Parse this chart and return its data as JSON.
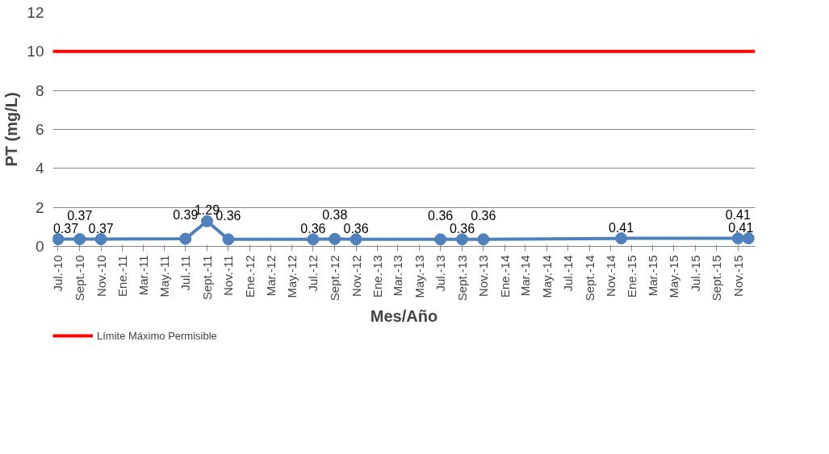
{
  "chart_data": {
    "type": "line",
    "xlabel": "Mes/Año",
    "ylabel": "PT (mg/L)",
    "x": [
      "2010-07",
      "2010-09",
      "2010-11",
      "2011-07",
      "2011-09",
      "2011-11",
      "2012-07",
      "2012-09",
      "2012-11",
      "2013-07",
      "2013-09",
      "2013-11",
      "2014-12",
      "2015-11",
      "2015-12"
    ],
    "series": [
      {
        "color": "#4f81bd",
        "values": [
          0.37,
          0.37,
          0.37,
          0.39,
          1.29,
          0.36,
          0.36,
          0.38,
          0.36,
          0.36,
          0.36,
          0.36,
          0.41,
          0.41,
          0.41
        ]
      }
    ],
    "data_labels": true,
    "marker": "circle",
    "line_style": "solid",
    "ylim": [
      0,
      12
    ],
    "yticks": [
      0,
      2,
      4,
      6,
      8,
      10,
      12
    ],
    "xlim": [
      "2010-06-16",
      "2015-12-20"
    ],
    "xticks": [
      {
        "value": "2010-07",
        "label": "Jul.-10"
      },
      {
        "value": "2010-09",
        "label": "Sept.-10"
      },
      {
        "value": "2010-11",
        "label": "Nov.-10"
      },
      {
        "value": "2011-01",
        "label": "Ene.-11"
      },
      {
        "value": "2011-03",
        "label": "Mar.-11"
      },
      {
        "value": "2011-05",
        "label": "May.-11"
      },
      {
        "value": "2011-07",
        "label": "Jul.-11"
      },
      {
        "value": "2011-09",
        "label": "Sept.-11"
      },
      {
        "value": "2011-11",
        "label": "Nov.-11"
      },
      {
        "value": "2012-01",
        "label": "Ene.-12"
      },
      {
        "value": "2012-03",
        "label": "Mar.-12"
      },
      {
        "value": "2012-05",
        "label": "May.-12"
      },
      {
        "value": "2012-07",
        "label": "Jul.-12"
      },
      {
        "value": "2012-09",
        "label": "Sept.-12"
      },
      {
        "value": "2012-11",
        "label": "Nov.-12"
      },
      {
        "value": "2013-01",
        "label": "Ene.-13"
      },
      {
        "value": "2013-03",
        "label": "Mar.-13"
      },
      {
        "value": "2013-05",
        "label": "May.-13"
      },
      {
        "value": "2013-07",
        "label": "Jul.-13"
      },
      {
        "value": "2013-09",
        "label": "Sept.-13"
      },
      {
        "value": "2013-11",
        "label": "Nov.-13"
      },
      {
        "value": "2014-01",
        "label": "Ene.-14"
      },
      {
        "value": "2014-03",
        "label": "Mar.-14"
      },
      {
        "value": "2014-05",
        "label": "May.-14"
      },
      {
        "value": "2014-07",
        "label": "Jul.-14"
      },
      {
        "value": "2014-09",
        "label": "Sept.-14"
      },
      {
        "value": "2014-11",
        "label": "Nov.-14"
      },
      {
        "value": "2015-01",
        "label": "Ene.-15"
      },
      {
        "value": "2015-03",
        "label": "Mar.-15"
      },
      {
        "value": "2015-05",
        "label": "May.-15"
      },
      {
        "value": "2015-07",
        "label": "Jul.-15"
      },
      {
        "value": "2015-09",
        "label": "Sept.-15"
      },
      {
        "value": "2015-11",
        "label": "Nov.-15"
      }
    ],
    "ref_lines": [
      {
        "axis": "y",
        "value": 10,
        "label": "Límite Máximo Permisible",
        "color": "#ff0000",
        "line_style": "solid"
      }
    ],
    "grid": "y",
    "legend": "bottom left"
  }
}
